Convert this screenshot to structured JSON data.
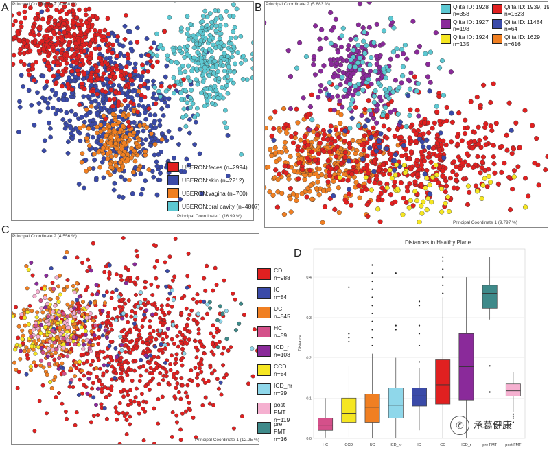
{
  "panels": {
    "A": {
      "letter": "A",
      "ylabel": "Principal Coordinate 2 (8.868 %)",
      "xlabel": "Principal Coordinate 1 (16.99 %)",
      "legend": [
        {
          "label": "UBERON:feces (n=2994)",
          "color": "#e02020"
        },
        {
          "label": "UBERON:skin (n=2212)",
          "color": "#3a4aa8"
        },
        {
          "label": "UBERON:vagina (n=700)",
          "color": "#f07f22"
        },
        {
          "label": "UBERON:oral cavity (n=4807)",
          "color": "#5cc8d2"
        }
      ]
    },
    "B": {
      "letter": "B",
      "ylabel": "Principal Coordinate 2 (5.883 %)",
      "xlabel": "Principal Coordinate 1 (9.797 %)",
      "legend": [
        {
          "line1": "Qiita ID: 1928",
          "line2": "n=358",
          "color": "#5cc8d2"
        },
        {
          "line1": "Qiita ID: 1939, 1998",
          "line2": "n=1623",
          "color": "#e02020"
        },
        {
          "line1": "Qiita ID: 1927",
          "line2": "n=198",
          "color": "#8a2a9a"
        },
        {
          "line1": "Qiita ID: 11484",
          "line2": "n=64",
          "color": "#3a4aa8"
        },
        {
          "line1": "Qiita ID: 1924",
          "line2": "n=135",
          "color": "#f5e622"
        },
        {
          "line1": "Qiita ID: 1629",
          "line2": "n=616",
          "color": "#f07f22"
        }
      ]
    },
    "C": {
      "letter": "C",
      "ylabel": "Principal Coordinate 2 (4.556 %)",
      "xlabel": "Principal Coordinate 1 (12.25 %)",
      "legend": [
        {
          "line1": "CD",
          "line2": "n=988",
          "color": "#e02020"
        },
        {
          "line1": "IC",
          "line2": "n=84",
          "color": "#3a4aa8"
        },
        {
          "line1": "UC",
          "line2": "n=545",
          "color": "#f07f22"
        },
        {
          "line1": "HC",
          "line2": "n=59",
          "color": "#d4508a"
        },
        {
          "line1": "ICD_r",
          "line2": "n=108",
          "color": "#8a2a9a"
        },
        {
          "line1": "CCD",
          "line2": "n=84",
          "color": "#f5e622"
        },
        {
          "line1": "ICD_nr",
          "line2": "n=29",
          "color": "#8fd7ea"
        },
        {
          "line1": "post FMT",
          "line2": "n=119",
          "color": "#f5b0d0"
        },
        {
          "line1": "pre FMT",
          "line2": "n=16",
          "color": "#3e8a8a"
        }
      ]
    },
    "D": {
      "letter": "D",
      "title": "Distances to Healthy Plane",
      "ylabel": "Distance"
    }
  },
  "chart_data": [
    {
      "panel": "A",
      "type": "scatter",
      "title": "",
      "xlabel": "Principal Coordinate 1 (16.99 %)",
      "ylabel": "Principal Coordinate 2 (8.868 %)",
      "series": [
        {
          "name": "UBERON:feces (n=2994)",
          "color": "#e02020",
          "n": 2994
        },
        {
          "name": "UBERON:skin (n=2212)",
          "color": "#3a4aa8",
          "n": 2212
        },
        {
          "name": "UBERON:vagina (n=700)",
          "color": "#f07f22",
          "n": 700
        },
        {
          "name": "UBERON:oral cavity (n=4807)",
          "color": "#5cc8d2",
          "n": 4807
        }
      ]
    },
    {
      "panel": "B",
      "type": "scatter",
      "title": "",
      "xlabel": "Principal Coordinate 1 (9.797 %)",
      "ylabel": "Principal Coordinate 2 (5.883 %)",
      "series": [
        {
          "name": "Qiita ID: 1928",
          "color": "#5cc8d2",
          "n": 358
        },
        {
          "name": "Qiita ID: 1939, 1998",
          "color": "#e02020",
          "n": 1623
        },
        {
          "name": "Qiita ID: 1927",
          "color": "#8a2a9a",
          "n": 198
        },
        {
          "name": "Qiita ID: 11484",
          "color": "#3a4aa8",
          "n": 64
        },
        {
          "name": "Qiita ID: 1924",
          "color": "#f5e622",
          "n": 135
        },
        {
          "name": "Qiita ID: 1629",
          "color": "#f07f22",
          "n": 616
        }
      ]
    },
    {
      "panel": "C",
      "type": "scatter",
      "title": "",
      "xlabel": "Principal Coordinate 1 (12.25 %)",
      "ylabel": "Principal Coordinate 2 (4.556 %)",
      "series": [
        {
          "name": "CD",
          "color": "#e02020",
          "n": 988
        },
        {
          "name": "IC",
          "color": "#3a4aa8",
          "n": 84
        },
        {
          "name": "UC",
          "color": "#f07f22",
          "n": 545
        },
        {
          "name": "HC",
          "color": "#d4508a",
          "n": 59
        },
        {
          "name": "ICD_r",
          "color": "#8a2a9a",
          "n": 108
        },
        {
          "name": "CCD",
          "color": "#f5e622",
          "n": 84
        },
        {
          "name": "ICD_nr",
          "color": "#8fd7ea",
          "n": 29
        },
        {
          "name": "post FMT",
          "color": "#f5b0d0",
          "n": 119
        },
        {
          "name": "pre FMT",
          "color": "#3e8a8a",
          "n": 16
        }
      ]
    },
    {
      "panel": "D",
      "type": "box",
      "title": "Distances to Healthy Plane",
      "xlabel": "",
      "ylabel": "Distance",
      "ylim": [
        0,
        0.47
      ],
      "yticks": [
        0.0,
        0.1,
        0.2,
        0.3,
        0.4
      ],
      "ytick_labels": [
        "0.0",
        "0.1",
        "0.2",
        "0.3",
        "0.4"
      ],
      "categories": [
        "HC",
        "CCD",
        "UC",
        "ICD_nr",
        "IC",
        "CD",
        "ICD_r",
        "pre FMT",
        "post FMT"
      ],
      "boxes": [
        {
          "name": "HC",
          "color": "#d4508a",
          "whisker_low": 0.002,
          "q1": 0.02,
          "median": 0.033,
          "q3": 0.05,
          "whisker_high": 0.1,
          "outliers": []
        },
        {
          "name": "CCD",
          "color": "#f5e622",
          "whisker_low": 0.003,
          "q1": 0.04,
          "median": 0.062,
          "q3": 0.1,
          "whisker_high": 0.18,
          "outliers": [
            0.24,
            0.25,
            0.26,
            0.375
          ]
        },
        {
          "name": "UC",
          "color": "#f07f22",
          "whisker_low": 0.0,
          "q1": 0.04,
          "median": 0.077,
          "q3": 0.11,
          "whisker_high": 0.21,
          "outliers": [
            0.23,
            0.25,
            0.27,
            0.29,
            0.31,
            0.33,
            0.35,
            0.37,
            0.39,
            0.41,
            0.43
          ]
        },
        {
          "name": "ICD_nr",
          "color": "#8fd7ea",
          "whisker_low": 0.0,
          "q1": 0.05,
          "median": 0.082,
          "q3": 0.125,
          "whisker_high": 0.2,
          "outliers": [
            0.27,
            0.28,
            0.41
          ]
        },
        {
          "name": "IC",
          "color": "#3a4aa8",
          "whisker_low": 0.02,
          "q1": 0.08,
          "median": 0.105,
          "q3": 0.125,
          "whisker_high": 0.175,
          "outliers": [
            0.19,
            0.23,
            0.26,
            0.28,
            0.33,
            0.34
          ]
        },
        {
          "name": "CD",
          "color": "#e02020",
          "whisker_low": 0.0,
          "q1": 0.085,
          "median": 0.133,
          "q3": 0.195,
          "whisker_high": 0.35,
          "outliers": [
            0.36,
            0.38,
            0.4,
            0.42,
            0.44,
            0.45
          ]
        },
        {
          "name": "ICD_r",
          "color": "#8a2a9a",
          "whisker_low": 0.0,
          "q1": 0.095,
          "median": 0.178,
          "q3": 0.26,
          "whisker_high": 0.4,
          "outliers": []
        },
        {
          "name": "pre FMT",
          "color": "#3e8a8a",
          "whisker_low": 0.295,
          "q1": 0.323,
          "median": 0.36,
          "q3": 0.38,
          "whisker_high": 0.45,
          "outliers": [
            0.115,
            0.18
          ]
        },
        {
          "name": "post FMT",
          "color": "#f5b0d0",
          "whisker_low": 0.065,
          "q1": 0.105,
          "median": 0.118,
          "q3": 0.135,
          "whisker_high": 0.165,
          "outliers": [
            0.04,
            0.05,
            0.055,
            0.06
          ]
        }
      ]
    }
  ],
  "watermark": {
    "icon": "wechat-icon",
    "text": "承葛健康"
  }
}
